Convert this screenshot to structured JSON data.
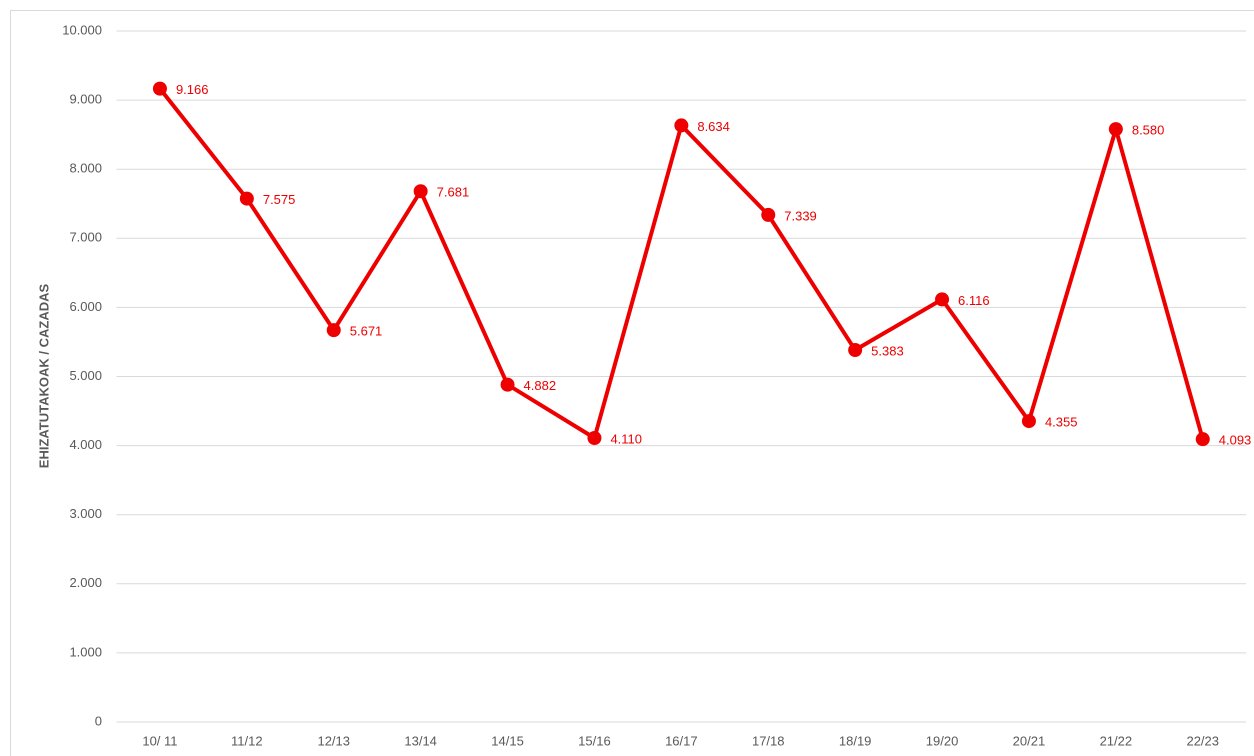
{
  "chart_data": {
    "type": "line",
    "y_axis_label": "EHIZATUTAKOAK / CAZADAS",
    "categories": [
      "10/ 11",
      "11/12",
      "12/13",
      "13/14",
      "14/15",
      "15/16",
      "16/17",
      "17/18",
      "18/19",
      "19/20",
      "20/21",
      "21/22",
      "22/23"
    ],
    "series": [
      {
        "name": "Cazadas",
        "color": "#ee0000",
        "values": [
          9166,
          7575,
          5671,
          7681,
          4882,
          4110,
          8634,
          7339,
          5383,
          6116,
          4355,
          8580,
          4093
        ],
        "value_labels": [
          "9.166",
          "7.575",
          "5.671",
          "7.681",
          "4.882",
          "4.110",
          "8.634",
          "7.339",
          "5.383",
          "6.116",
          "4.355",
          "8.580",
          "4.093"
        ]
      }
    ],
    "ylim": [
      0,
      10000
    ],
    "yticks": [
      0,
      {
        "value": 1000,
        "label": "1.000"
      },
      {
        "value": 2000,
        "label": "2.000"
      },
      {
        "value": 3000,
        "label": "3.000"
      },
      {
        "value": 4000,
        "label": "4.000"
      },
      {
        "value": 5000,
        "label": "5.000"
      },
      {
        "value": 6000,
        "label": "6.000"
      },
      {
        "value": 7000,
        "label": "7.000"
      },
      {
        "value": 8000,
        "label": "8.000"
      },
      {
        "value": 9000,
        "label": "9.000"
      },
      {
        "value": 10000,
        "label": "10.000"
      }
    ],
    "grid": true
  }
}
